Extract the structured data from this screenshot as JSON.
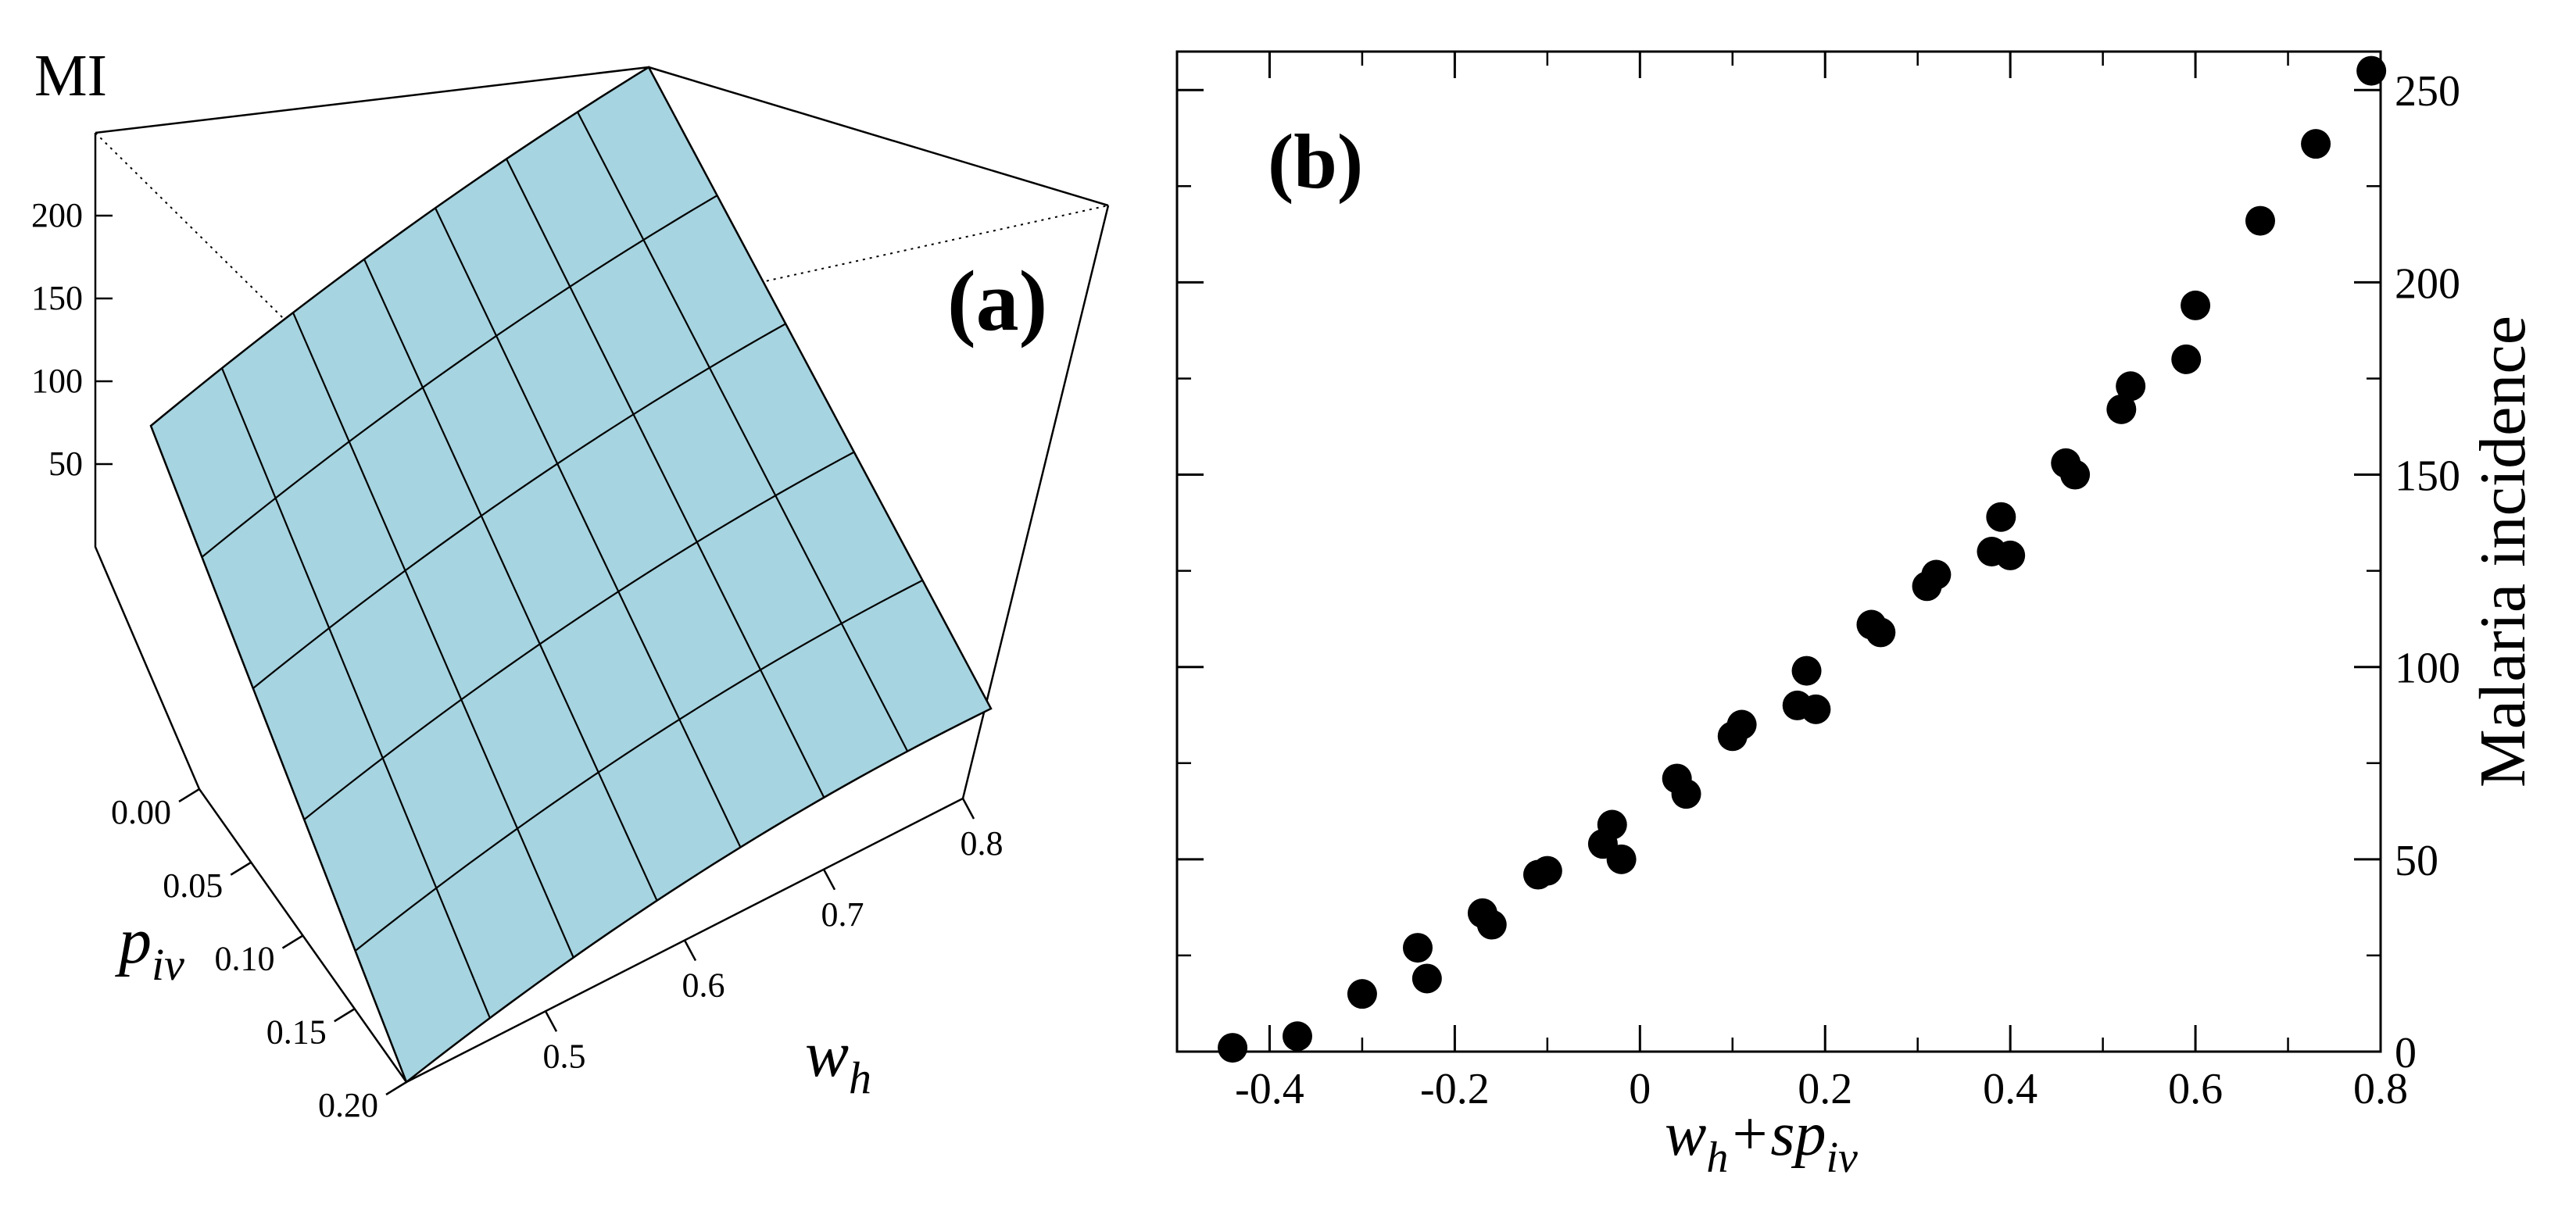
{
  "colors": {
    "surface_fill": "#a6d4e0",
    "axis": "#000000",
    "marker": "#000000"
  },
  "chart_data": [
    {
      "type": "surface3d",
      "panel_label": "(a)",
      "zlabel": "MI",
      "xlabel": "p",
      "xlabel_sub": "iv",
      "ylabel": "w",
      "ylabel_sub": "h",
      "z_ticks": [
        "50",
        "100",
        "150",
        "200"
      ],
      "piv_ticks": [
        "0.00",
        "0.05",
        "0.10",
        "0.15",
        "0.20"
      ],
      "wh_ticks": [
        "0.5",
        "0.6",
        "0.7",
        "0.8"
      ],
      "piv_range": [
        0.0,
        0.2
      ],
      "wh_range": [
        0.4,
        0.8
      ],
      "z_range": [
        0,
        250
      ]
    },
    {
      "type": "scatter",
      "panel_label": "(b)",
      "xlabel": "w",
      "xlabel_sub1": "h",
      "xlabel_mid": "+sp",
      "xlabel_sub2": "iv",
      "ylabel": "Malaria incidence",
      "xlim": [
        -0.5,
        0.8
      ],
      "ylim": [
        0,
        260
      ],
      "x_ticks": [
        "-0.4",
        "-0.2",
        "0",
        "0.2",
        "0.4",
        "0.6",
        "0.8"
      ],
      "y_ticks": [
        "0",
        "50",
        "100",
        "150",
        "200",
        "250"
      ],
      "points": [
        {
          "x": -0.44,
          "y": 1
        },
        {
          "x": -0.37,
          "y": 4
        },
        {
          "x": -0.3,
          "y": 15
        },
        {
          "x": -0.24,
          "y": 27
        },
        {
          "x": -0.23,
          "y": 19
        },
        {
          "x": -0.17,
          "y": 36
        },
        {
          "x": -0.16,
          "y": 33
        },
        {
          "x": -0.11,
          "y": 46
        },
        {
          "x": -0.1,
          "y": 47
        },
        {
          "x": -0.04,
          "y": 54
        },
        {
          "x": -0.03,
          "y": 59
        },
        {
          "x": -0.02,
          "y": 50
        },
        {
          "x": 0.04,
          "y": 71
        },
        {
          "x": 0.05,
          "y": 67
        },
        {
          "x": 0.1,
          "y": 82
        },
        {
          "x": 0.11,
          "y": 85
        },
        {
          "x": 0.17,
          "y": 90
        },
        {
          "x": 0.18,
          "y": 99
        },
        {
          "x": 0.19,
          "y": 89
        },
        {
          "x": 0.25,
          "y": 111
        },
        {
          "x": 0.26,
          "y": 109
        },
        {
          "x": 0.31,
          "y": 121
        },
        {
          "x": 0.32,
          "y": 124
        },
        {
          "x": 0.38,
          "y": 130
        },
        {
          "x": 0.39,
          "y": 139
        },
        {
          "x": 0.4,
          "y": 129
        },
        {
          "x": 0.46,
          "y": 153
        },
        {
          "x": 0.47,
          "y": 150
        },
        {
          "x": 0.52,
          "y": 167
        },
        {
          "x": 0.53,
          "y": 173
        },
        {
          "x": 0.59,
          "y": 180
        },
        {
          "x": 0.6,
          "y": 194
        },
        {
          "x": 0.67,
          "y": 216
        },
        {
          "x": 0.73,
          "y": 236
        },
        {
          "x": 0.79,
          "y": 255
        }
      ]
    }
  ]
}
